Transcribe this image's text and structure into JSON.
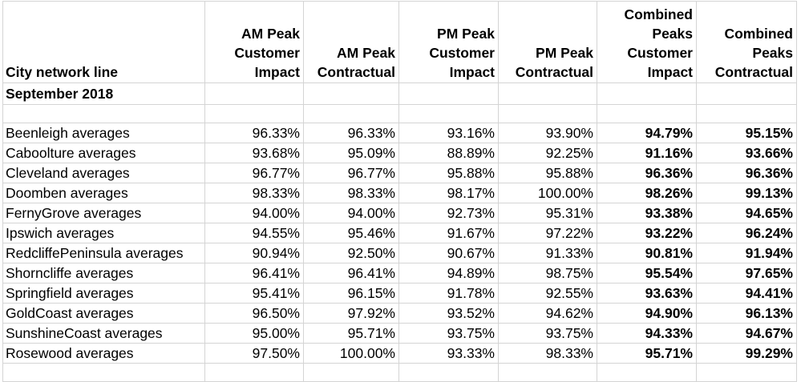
{
  "table": {
    "headers": [
      [
        "City network line"
      ],
      [
        "AM Peak",
        "Customer",
        "Impact"
      ],
      [
        "AM Peak",
        "Contractual"
      ],
      [
        "PM Peak",
        "Customer",
        "Impact"
      ],
      [
        "PM Peak",
        "Contractual"
      ],
      [
        "Combined",
        "Peaks",
        "Customer",
        "Impact"
      ],
      [
        "Combined",
        "Peaks",
        "Contractual"
      ]
    ],
    "period": "September 2018",
    "rows": [
      [
        "Beenleigh averages",
        "96.33%",
        "96.33%",
        "93.16%",
        "93.90%",
        "94.79%",
        "95.15%"
      ],
      [
        "Caboolture averages",
        "93.68%",
        "95.09%",
        "88.89%",
        "92.25%",
        "91.16%",
        "93.66%"
      ],
      [
        "Cleveland averages",
        "96.77%",
        "96.77%",
        "95.88%",
        "95.88%",
        "96.36%",
        "96.36%"
      ],
      [
        "Doomben averages",
        "98.33%",
        "98.33%",
        "98.17%",
        "100.00%",
        "98.26%",
        "99.13%"
      ],
      [
        "FernyGrove averages",
        "94.00%",
        "94.00%",
        "92.73%",
        "95.31%",
        "93.38%",
        "94.65%"
      ],
      [
        "Ipswich averages",
        "94.55%",
        "95.46%",
        "91.67%",
        "97.22%",
        "93.22%",
        "96.24%"
      ],
      [
        "RedcliffePeninsula averages",
        "90.94%",
        "92.50%",
        "90.67%",
        "91.33%",
        "90.81%",
        "91.94%"
      ],
      [
        "Shorncliffe averages",
        "96.41%",
        "96.41%",
        "94.89%",
        "98.75%",
        "95.54%",
        "97.65%"
      ],
      [
        "Springfield averages",
        "95.41%",
        "96.15%",
        "91.78%",
        "92.55%",
        "93.63%",
        "94.41%"
      ],
      [
        "GoldCoast averages",
        "96.50%",
        "97.92%",
        "93.52%",
        "94.62%",
        "94.90%",
        "96.13%"
      ],
      [
        "SunshineCoast averages",
        "95.00%",
        "95.71%",
        "93.75%",
        "93.75%",
        "94.33%",
        "94.67%"
      ],
      [
        "Rosewood averages",
        "97.50%",
        "100.00%",
        "93.33%",
        "98.33%",
        "95.71%",
        "99.29%"
      ]
    ]
  }
}
